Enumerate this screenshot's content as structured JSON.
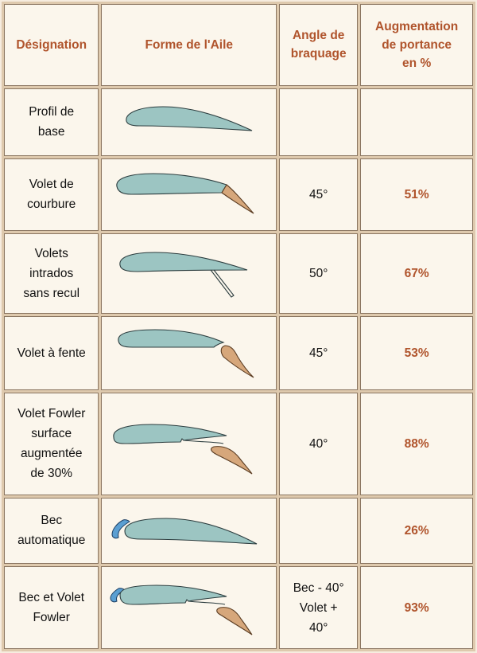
{
  "header": {
    "designation": "Désignation",
    "forme": "Forme de l'Aile",
    "angle_l1": "Angle de",
    "angle_l2": "braquage",
    "aug_l1": "Augmentation",
    "aug_l2": "de portance",
    "aug_l3": "en %"
  },
  "rows": [
    {
      "name_lines": [
        "Profil de",
        "base"
      ],
      "wing_icon": "base-airfoil-icon",
      "angle_lines": [],
      "gain": ""
    },
    {
      "name_lines": [
        "Volet de",
        "courbure"
      ],
      "wing_icon": "camber-flap-icon",
      "angle_lines": [
        "45°"
      ],
      "gain": "51%"
    },
    {
      "name_lines": [
        "Volets",
        "intrados",
        "sans recul"
      ],
      "wing_icon": "split-flap-icon",
      "angle_lines": [
        "50°"
      ],
      "gain": "67%"
    },
    {
      "name_lines": [
        "Volet à fente"
      ],
      "wing_icon": "slotted-flap-icon",
      "angle_lines": [
        "45°"
      ],
      "gain": "53%"
    },
    {
      "name_lines": [
        "Volet Fowler",
        "surface",
        "augmentée",
        "de 30%"
      ],
      "wing_icon": "fowler-flap-icon",
      "angle_lines": [
        "40°"
      ],
      "gain": "88%"
    },
    {
      "name_lines": [
        "Bec",
        "automatique"
      ],
      "wing_icon": "leading-edge-slat-icon",
      "angle_lines": [],
      "gain": "26%"
    },
    {
      "name_lines": [
        "Bec et Volet",
        "Fowler"
      ],
      "wing_icon": "slat-and-fowler-flap-icon",
      "angle_lines": [
        "Bec - 40°",
        "Volet +",
        "40°"
      ],
      "gain": "93%"
    }
  ],
  "colors": {
    "header_text": "#b0542c",
    "wing_fill": "#9cc5c2",
    "flap_fill": "#d6a77b",
    "slat_fill": "#5b9fd2",
    "frame": "#dec9ad",
    "cell_bg": "#fbf6ec"
  }
}
